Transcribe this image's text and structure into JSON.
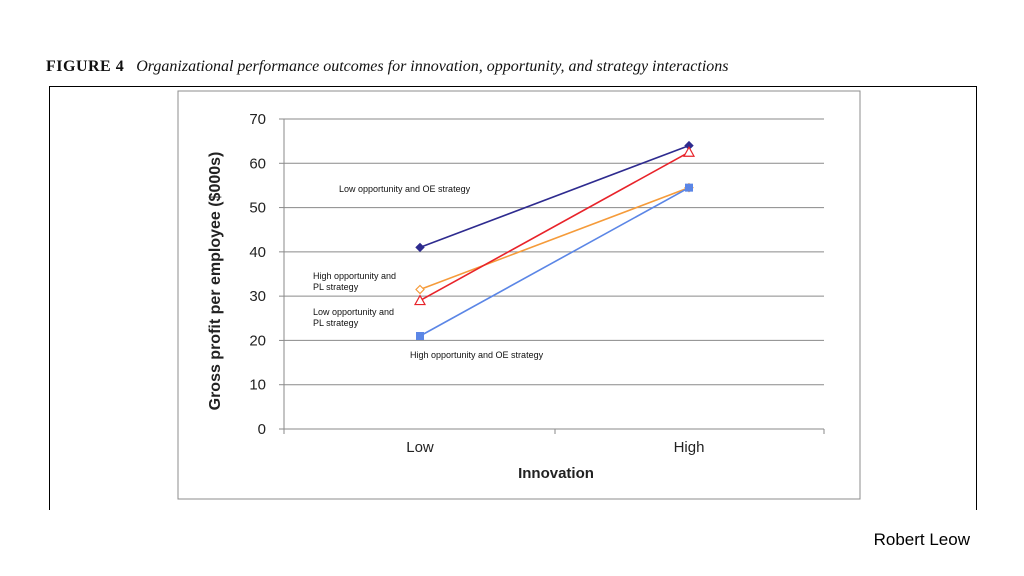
{
  "figure": {
    "number": "FIGURE 4",
    "caption": "Organizational performance outcomes for innovation, opportunity, and strategy interactions"
  },
  "footer": {
    "author": "Robert Leow"
  },
  "chart_data": {
    "type": "line",
    "title": "",
    "xlabel": "Innovation",
    "ylabel": "Gross profit per employee ($000s)",
    "categories": [
      "Low",
      "High"
    ],
    "ylim": [
      0,
      70
    ],
    "yticks": [
      0,
      10,
      20,
      30,
      40,
      50,
      60,
      70
    ],
    "grid": true,
    "series": [
      {
        "name": "Low opportunity  and OE strategy",
        "values": [
          41,
          64
        ],
        "color": "#2e2b8f",
        "marker": "diamond"
      },
      {
        "name": "High opportunity  and PL strategy",
        "values": [
          31.5,
          54.5
        ],
        "color": "#f59b3a",
        "marker": "diamond-open"
      },
      {
        "name": "Low opportunity  and PL strategy",
        "values": [
          29,
          62.5
        ],
        "color": "#e8232a",
        "marker": "triangle-open"
      },
      {
        "name": "High opportunity  and OE strategy",
        "values": [
          21,
          54.5
        ],
        "color": "#5b86e6",
        "marker": "square"
      }
    ],
    "annotations": [
      {
        "lines": [
          "Low opportunity  and OE strategy"
        ]
      },
      {
        "lines": [
          "High opportunity  and",
          "PL strategy"
        ]
      },
      {
        "lines": [
          "Low opportunity  and",
          "PL strategy"
        ]
      },
      {
        "lines": [
          "High opportunity  and OE strategy"
        ]
      }
    ]
  }
}
